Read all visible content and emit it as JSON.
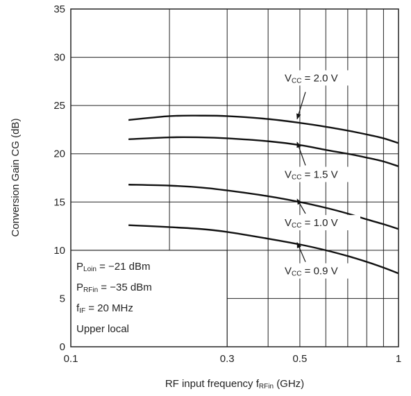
{
  "chart_data": {
    "type": "line",
    "xlabel": "RF input frequency",
    "xlabel_symbol": "f",
    "xlabel_symbol_sub": "RFin",
    "xlabel_unit": "(GHz)",
    "ylabel": "Conversion Gain  CG  (dB)",
    "x_scale": "log",
    "xlim": [
      0.1,
      1
    ],
    "ylim": [
      0,
      35
    ],
    "grid": true,
    "x_ticks": [
      {
        "value": 0.1,
        "label": "0.1"
      },
      {
        "value": 0.3,
        "label": "0.3"
      },
      {
        "value": 0.5,
        "label": "0.5"
      },
      {
        "value": 1,
        "label": "1"
      }
    ],
    "y_ticks": [
      {
        "value": 0,
        "label": "0"
      },
      {
        "value": 5,
        "label": "5"
      },
      {
        "value": 10,
        "label": "10"
      },
      {
        "value": 15,
        "label": "15"
      },
      {
        "value": 20,
        "label": "20"
      },
      {
        "value": 25,
        "label": "25"
      },
      {
        "value": 30,
        "label": "30"
      },
      {
        "value": 35,
        "label": "35"
      }
    ],
    "series": [
      {
        "name": "VCC = 2.0 V",
        "label_main": "V",
        "label_sub": "CC",
        "label_rest": " = 2.0 V",
        "x": [
          0.15,
          0.2,
          0.25,
          0.3,
          0.4,
          0.5,
          0.6,
          0.7,
          0.8,
          0.9,
          1.0
        ],
        "values": [
          23.5,
          23.9,
          23.95,
          23.9,
          23.6,
          23.2,
          22.8,
          22.4,
          22.0,
          21.6,
          21.1
        ]
      },
      {
        "name": "VCC = 1.5 V",
        "label_main": "V",
        "label_sub": "CC",
        "label_rest": " = 1.5 V",
        "x": [
          0.15,
          0.2,
          0.25,
          0.3,
          0.4,
          0.5,
          0.6,
          0.7,
          0.8,
          0.9,
          1.0
        ],
        "values": [
          21.5,
          21.7,
          21.7,
          21.6,
          21.3,
          20.9,
          20.4,
          20.0,
          19.6,
          19.2,
          18.7
        ]
      },
      {
        "name": "VCC = 1.0 V",
        "label_main": "V",
        "label_sub": "CC",
        "label_rest": " = 1.0 V",
        "x": [
          0.15,
          0.2,
          0.25,
          0.3,
          0.4,
          0.5,
          0.6,
          0.7,
          0.8,
          0.9,
          1.0
        ],
        "values": [
          16.8,
          16.7,
          16.5,
          16.2,
          15.6,
          15.0,
          14.4,
          13.8,
          13.2,
          12.7,
          12.2
        ]
      },
      {
        "name": "VCC = 0.9 V",
        "label_main": "V",
        "label_sub": "CC",
        "label_rest": " = 0.9 V",
        "x": [
          0.15,
          0.2,
          0.25,
          0.3,
          0.4,
          0.5,
          0.6,
          0.7,
          0.8,
          0.9,
          1.0
        ],
        "values": [
          12.6,
          12.4,
          12.2,
          11.9,
          11.2,
          10.6,
          10.0,
          9.4,
          8.8,
          8.2,
          7.6
        ]
      }
    ],
    "series_label_positions": [
      "top-right",
      "middle-right",
      "middle-right",
      "lower-right"
    ],
    "conditions": [
      {
        "main": "P",
        "sub": "Loin",
        "rest": " = −21 dBm"
      },
      {
        "main": "P",
        "sub": "RFin",
        "rest": " = −35 dBm"
      },
      {
        "main": "f",
        "sub": "IF",
        "rest": " = 20 MHz"
      },
      {
        "main": "Upper local",
        "sub": "",
        "rest": ""
      }
    ]
  }
}
